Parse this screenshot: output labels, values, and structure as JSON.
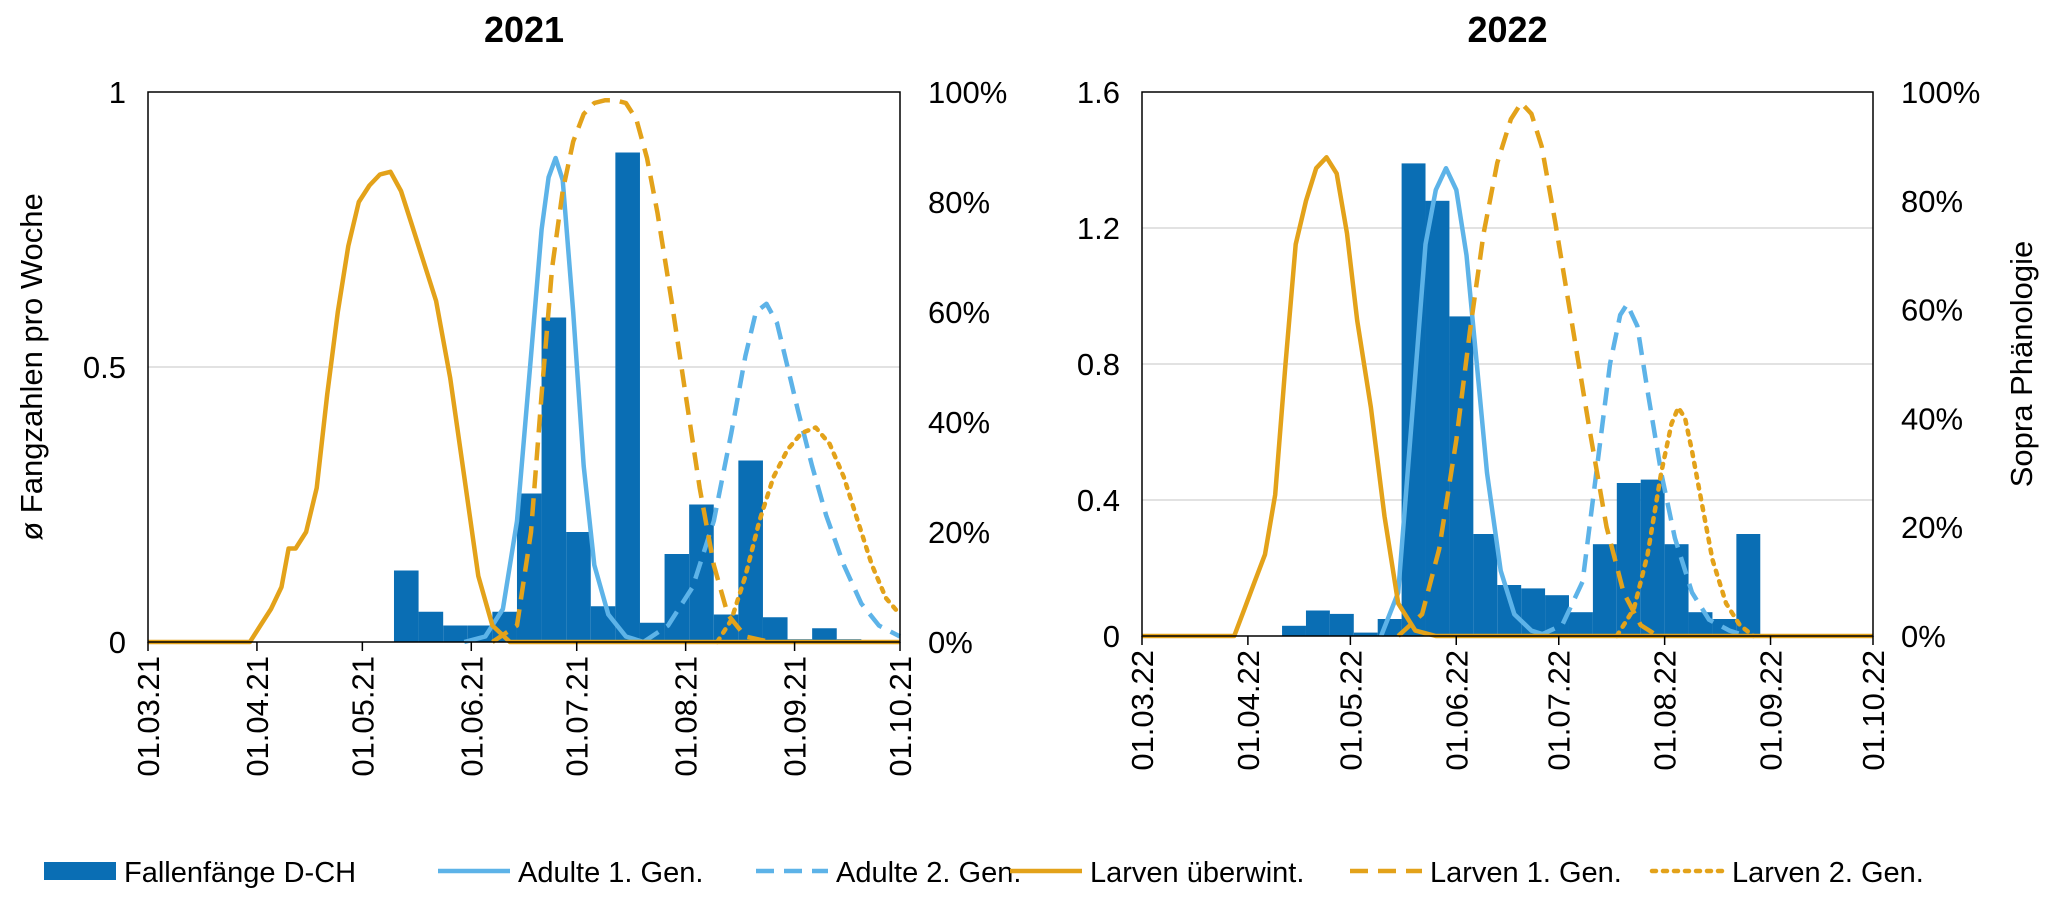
{
  "legend": [
    {
      "label": "Fallenfänge D-CH",
      "kind": "bar",
      "color": "#0A6EB4",
      "dash": ""
    },
    {
      "label": "Adulte 1. Gen.",
      "kind": "line",
      "color": "#5DB3E8",
      "dash": ""
    },
    {
      "label": "Adulte 2. Gen.",
      "kind": "line",
      "color": "#5DB3E8",
      "dash": "18,10"
    },
    {
      "label": "Larven überwint.",
      "kind": "line",
      "color": "#E3A21A",
      "dash": ""
    },
    {
      "label": "Larven 1. Gen.",
      "kind": "line",
      "color": "#E3A21A",
      "dash": "18,10"
    },
    {
      "label": "Larven 2. Gen.",
      "kind": "line",
      "color": "#E3A21A",
      "dash": "4,7"
    }
  ],
  "chart_data": [
    {
      "type": "bar",
      "title": "2021",
      "ylabel": "ø Fangzahlen pro Woche",
      "y2label": "",
      "ylim": [
        0,
        1
      ],
      "yticks": [
        "0",
        "0.5",
        "1"
      ],
      "y2lim": [
        0,
        1
      ],
      "y2ticks": [
        "0%",
        "20%",
        "40%",
        "60%",
        "80%",
        "100%"
      ],
      "xlim": [
        "2021-03-01",
        "2021-10-01"
      ],
      "xticks": [
        "01.03.21",
        "01.04.21",
        "01.05.21",
        "01.06.21",
        "01.07.21",
        "01.08.21",
        "01.09.21",
        "01.10.21"
      ],
      "grid": "horizontal",
      "bars": {
        "name": "Fallenfänge D-CH",
        "width_days": 7,
        "x": [
          "2021-05-10",
          "2021-05-17",
          "2021-05-24",
          "2021-05-31",
          "2021-06-07",
          "2021-06-14",
          "2021-06-21",
          "2021-06-28",
          "2021-07-05",
          "2021-07-12",
          "2021-07-19",
          "2021-07-26",
          "2021-08-02",
          "2021-08-09",
          "2021-08-16",
          "2021-08-23",
          "2021-08-30",
          "2021-09-06",
          "2021-09-13"
        ],
        "values": [
          0.13,
          0.055,
          0.03,
          0.03,
          0.055,
          0.27,
          0.59,
          0.2,
          0.065,
          0.89,
          0.035,
          0.16,
          0.25,
          0.05,
          0.33,
          0.045,
          0.005,
          0.025,
          0.005
        ]
      },
      "series": [
        {
          "name": "Adulte 1. Gen.",
          "x": [
            "2021-05-30",
            "2021-06-05",
            "2021-06-10",
            "2021-06-14",
            "2021-06-18",
            "2021-06-21",
            "2021-06-23",
            "2021-06-25",
            "2021-06-27",
            "2021-06-30",
            "2021-07-03",
            "2021-07-06",
            "2021-07-10",
            "2021-07-15",
            "2021-07-20"
          ],
          "values": [
            0,
            0.01,
            0.06,
            0.22,
            0.52,
            0.75,
            0.845,
            0.88,
            0.84,
            0.6,
            0.32,
            0.14,
            0.05,
            0.01,
            0
          ]
        },
        {
          "name": "Adulte 2. Gen.",
          "x": [
            "2021-07-20",
            "2021-07-27",
            "2021-08-03",
            "2021-08-09",
            "2021-08-14",
            "2021-08-18",
            "2021-08-21",
            "2021-08-24",
            "2021-08-27",
            "2021-08-30",
            "2021-09-02",
            "2021-09-06",
            "2021-09-10",
            "2021-09-15",
            "2021-09-20",
            "2021-09-25",
            "2021-10-01"
          ],
          "values": [
            0,
            0.03,
            0.1,
            0.22,
            0.38,
            0.52,
            0.6,
            0.615,
            0.58,
            0.5,
            0.42,
            0.32,
            0.23,
            0.14,
            0.07,
            0.03,
            0.01
          ]
        },
        {
          "name": "Larven überwint.",
          "x": [
            "2021-03-01",
            "2021-03-30",
            "2021-04-02",
            "2021-04-05",
            "2021-04-08",
            "2021-04-10",
            "2021-04-12",
            "2021-04-15",
            "2021-04-18",
            "2021-04-21",
            "2021-04-24",
            "2021-04-27",
            "2021-04-30",
            "2021-05-03",
            "2021-05-06",
            "2021-05-09",
            "2021-05-12",
            "2021-05-15",
            "2021-05-18",
            "2021-05-22",
            "2021-05-26",
            "2021-05-30",
            "2021-06-03",
            "2021-06-07",
            "2021-06-12",
            "2021-10-01"
          ],
          "values": [
            0,
            0,
            0.03,
            0.06,
            0.1,
            0.17,
            0.17,
            0.2,
            0.28,
            0.45,
            0.6,
            0.72,
            0.8,
            0.83,
            0.85,
            0.855,
            0.82,
            0.76,
            0.7,
            0.62,
            0.48,
            0.3,
            0.12,
            0.03,
            0,
            0
          ]
        },
        {
          "name": "Larven 1. Gen.",
          "x": [
            "2021-06-07",
            "2021-06-14",
            "2021-06-18",
            "2021-06-21",
            "2021-06-24",
            "2021-06-27",
            "2021-06-30",
            "2021-07-03",
            "2021-07-06",
            "2021-07-09",
            "2021-07-12",
            "2021-07-15",
            "2021-07-18",
            "2021-07-21",
            "2021-07-24",
            "2021-07-28",
            "2021-08-01",
            "2021-08-05",
            "2021-08-09",
            "2021-08-13",
            "2021-08-18",
            "2021-08-25"
          ],
          "values": [
            0,
            0.03,
            0.2,
            0.45,
            0.68,
            0.82,
            0.91,
            0.96,
            0.98,
            0.985,
            0.985,
            0.98,
            0.95,
            0.88,
            0.78,
            0.62,
            0.45,
            0.28,
            0.14,
            0.05,
            0.01,
            0
          ]
        },
        {
          "name": "Larven 2. Gen.",
          "x": [
            "2021-08-10",
            "2021-08-14",
            "2021-08-18",
            "2021-08-22",
            "2021-08-26",
            "2021-08-30",
            "2021-09-03",
            "2021-09-07",
            "2021-09-11",
            "2021-09-15",
            "2021-09-19",
            "2021-09-23",
            "2021-09-27",
            "2021-10-01"
          ],
          "values": [
            0,
            0.04,
            0.12,
            0.22,
            0.3,
            0.35,
            0.38,
            0.39,
            0.36,
            0.3,
            0.22,
            0.14,
            0.08,
            0.05
          ]
        }
      ]
    },
    {
      "type": "bar",
      "title": "2022",
      "ylabel": "",
      "y2label": "Sopra Phänologie",
      "ylim": [
        0,
        1.6
      ],
      "yticks": [
        "0",
        "0.4",
        "0.8",
        "1.2",
        "1.6"
      ],
      "y2lim": [
        0,
        1
      ],
      "y2ticks": [
        "0%",
        "20%",
        "40%",
        "60%",
        "80%",
        "100%"
      ],
      "xlim": [
        "2022-03-01",
        "2022-10-01"
      ],
      "xticks": [
        "01.03.22",
        "01.04.22",
        "01.05.22",
        "01.06.22",
        "01.07.22",
        "01.08.22",
        "01.09.22",
        "01.10.22"
      ],
      "grid": "horizontal",
      "bars": {
        "name": "Fallenfänge D-CH",
        "width_days": 7,
        "x": [
          "2022-04-11",
          "2022-04-18",
          "2022-04-25",
          "2022-05-02",
          "2022-05-09",
          "2022-05-16",
          "2022-05-23",
          "2022-05-30",
          "2022-06-06",
          "2022-06-13",
          "2022-06-20",
          "2022-06-27",
          "2022-07-04",
          "2022-07-11",
          "2022-07-18",
          "2022-07-25",
          "2022-08-01",
          "2022-08-08",
          "2022-08-15",
          "2022-08-22"
        ],
        "values": [
          0.03,
          0.075,
          0.065,
          0.01,
          0.05,
          1.39,
          1.28,
          0.94,
          0.3,
          0.15,
          0.14,
          0.12,
          0.07,
          0.27,
          0.45,
          0.46,
          0.27,
          0.07,
          0.05,
          0.3
        ]
      },
      "series": [
        {
          "name": "Adulte 1. Gen.",
          "x": [
            "2022-05-10",
            "2022-05-15",
            "2022-05-19",
            "2022-05-23",
            "2022-05-26",
            "2022-05-29",
            "2022-06-01",
            "2022-06-04",
            "2022-06-07",
            "2022-06-10",
            "2022-06-14",
            "2022-06-18",
            "2022-06-23",
            "2022-06-28"
          ],
          "values": [
            0,
            0.08,
            0.4,
            0.72,
            0.82,
            0.86,
            0.82,
            0.7,
            0.5,
            0.3,
            0.12,
            0.04,
            0.01,
            0
          ]
        },
        {
          "name": "Adulte 2. Gen.",
          "x": [
            "2022-06-25",
            "2022-07-02",
            "2022-07-08",
            "2022-07-12",
            "2022-07-16",
            "2022-07-19",
            "2022-07-21",
            "2022-07-24",
            "2022-07-27",
            "2022-07-31",
            "2022-08-04",
            "2022-08-09",
            "2022-08-14",
            "2022-08-20",
            "2022-08-25"
          ],
          "values": [
            0,
            0.02,
            0.1,
            0.3,
            0.5,
            0.59,
            0.61,
            0.57,
            0.45,
            0.3,
            0.18,
            0.08,
            0.03,
            0.01,
            0
          ]
        },
        {
          "name": "Larven überwint.",
          "x": [
            "2022-03-01",
            "2022-03-28",
            "2022-03-31",
            "2022-04-03",
            "2022-04-06",
            "2022-04-09",
            "2022-04-12",
            "2022-04-15",
            "2022-04-18",
            "2022-04-21",
            "2022-04-24",
            "2022-04-27",
            "2022-04-30",
            "2022-05-03",
            "2022-05-07",
            "2022-05-11",
            "2022-05-15",
            "2022-05-20",
            "2022-05-26",
            "2022-10-01"
          ],
          "values": [
            0,
            0,
            0.05,
            0.1,
            0.15,
            0.26,
            0.5,
            0.72,
            0.8,
            0.86,
            0.88,
            0.85,
            0.74,
            0.58,
            0.42,
            0.22,
            0.06,
            0.01,
            0,
            0
          ]
        },
        {
          "name": "Larven 1. Gen.",
          "x": [
            "2022-05-15",
            "2022-05-22",
            "2022-05-27",
            "2022-06-01",
            "2022-06-05",
            "2022-06-09",
            "2022-06-13",
            "2022-06-17",
            "2022-06-20",
            "2022-06-23",
            "2022-06-26",
            "2022-06-30",
            "2022-07-05",
            "2022-07-10",
            "2022-07-15",
            "2022-07-20",
            "2022-07-25",
            "2022-07-30"
          ],
          "values": [
            0,
            0.04,
            0.16,
            0.36,
            0.56,
            0.74,
            0.87,
            0.95,
            0.98,
            0.96,
            0.9,
            0.76,
            0.57,
            0.38,
            0.2,
            0.08,
            0.02,
            0
          ]
        },
        {
          "name": "Larven 2. Gen.",
          "x": [
            "2022-07-18",
            "2022-07-23",
            "2022-07-27",
            "2022-07-31",
            "2022-08-03",
            "2022-08-05",
            "2022-08-07",
            "2022-08-09",
            "2022-08-12",
            "2022-08-15",
            "2022-08-19",
            "2022-08-23",
            "2022-08-27"
          ],
          "values": [
            0,
            0.05,
            0.15,
            0.3,
            0.39,
            0.42,
            0.4,
            0.34,
            0.24,
            0.14,
            0.06,
            0.02,
            0
          ]
        }
      ]
    }
  ]
}
